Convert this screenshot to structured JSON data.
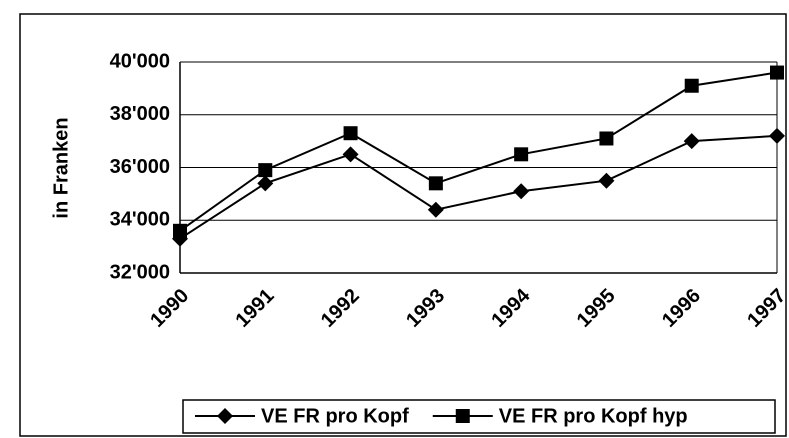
{
  "chart_data": {
    "type": "line",
    "y_label": "in Franken",
    "categories": [
      "1990",
      "1991",
      "1992",
      "1993",
      "1994",
      "1995",
      "1996",
      "1997"
    ],
    "series": [
      {
        "name": "VE FR pro Kopf",
        "color": "#000000",
        "marker": "diamond",
        "values": [
          33300,
          35400,
          36500,
          34400,
          35100,
          35500,
          37000,
          37200
        ]
      },
      {
        "name": "VE FR pro Kopf hyp",
        "color": "#000000",
        "marker": "square",
        "values": [
          33600,
          35900,
          37300,
          35400,
          36500,
          37100,
          39100,
          39600
        ]
      }
    ],
    "ylim": [
      32000,
      40000
    ],
    "yticks": [
      {
        "value": 32000,
        "label": "32'000"
      },
      {
        "value": 34000,
        "label": "34'000"
      },
      {
        "value": 36000,
        "label": "36'000"
      },
      {
        "value": 38000,
        "label": "38'000"
      },
      {
        "value": 40000,
        "label": "40'000"
      }
    ],
    "grid": true,
    "legend": "bottom"
  }
}
